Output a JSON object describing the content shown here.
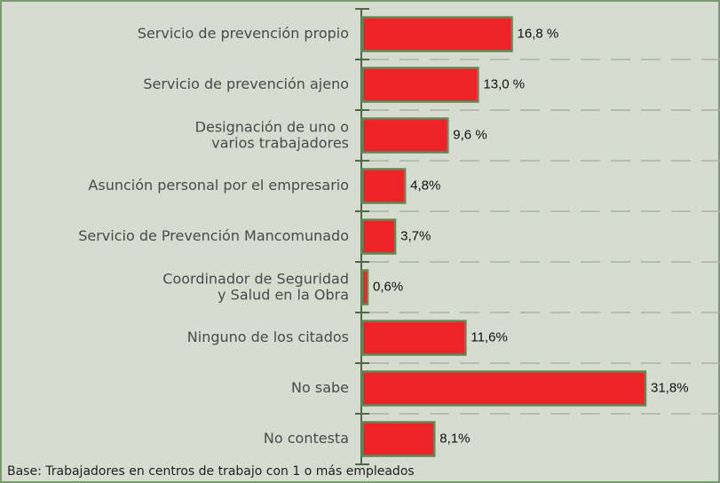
{
  "chart_data": {
    "type": "bar",
    "orientation": "horizontal",
    "categories": [
      "Servicio de prevención propio",
      "Servicio de prevención ajeno",
      "Designación de uno o\nvarios trabajadores",
      "Asunción personal por el empresario",
      "Servicio de Prevención Mancomunado",
      "Coordinador de Seguridad\ny Salud en la Obra",
      "Ninguno de los citados",
      "No sabe",
      "No contesta"
    ],
    "values": [
      16.8,
      13.0,
      9.6,
      4.8,
      3.7,
      0.6,
      11.6,
      31.8,
      8.1
    ],
    "value_labels": [
      "16,8 %",
      "13,0 %",
      "9,6 %",
      "4,8%",
      "3,7%",
      "0,6%",
      "11,6%",
      "31,8%",
      "8,1%"
    ],
    "color": "#ee2327",
    "note": "Base: Trabajadores en centros de trabajo con 1 o más empleados"
  }
}
